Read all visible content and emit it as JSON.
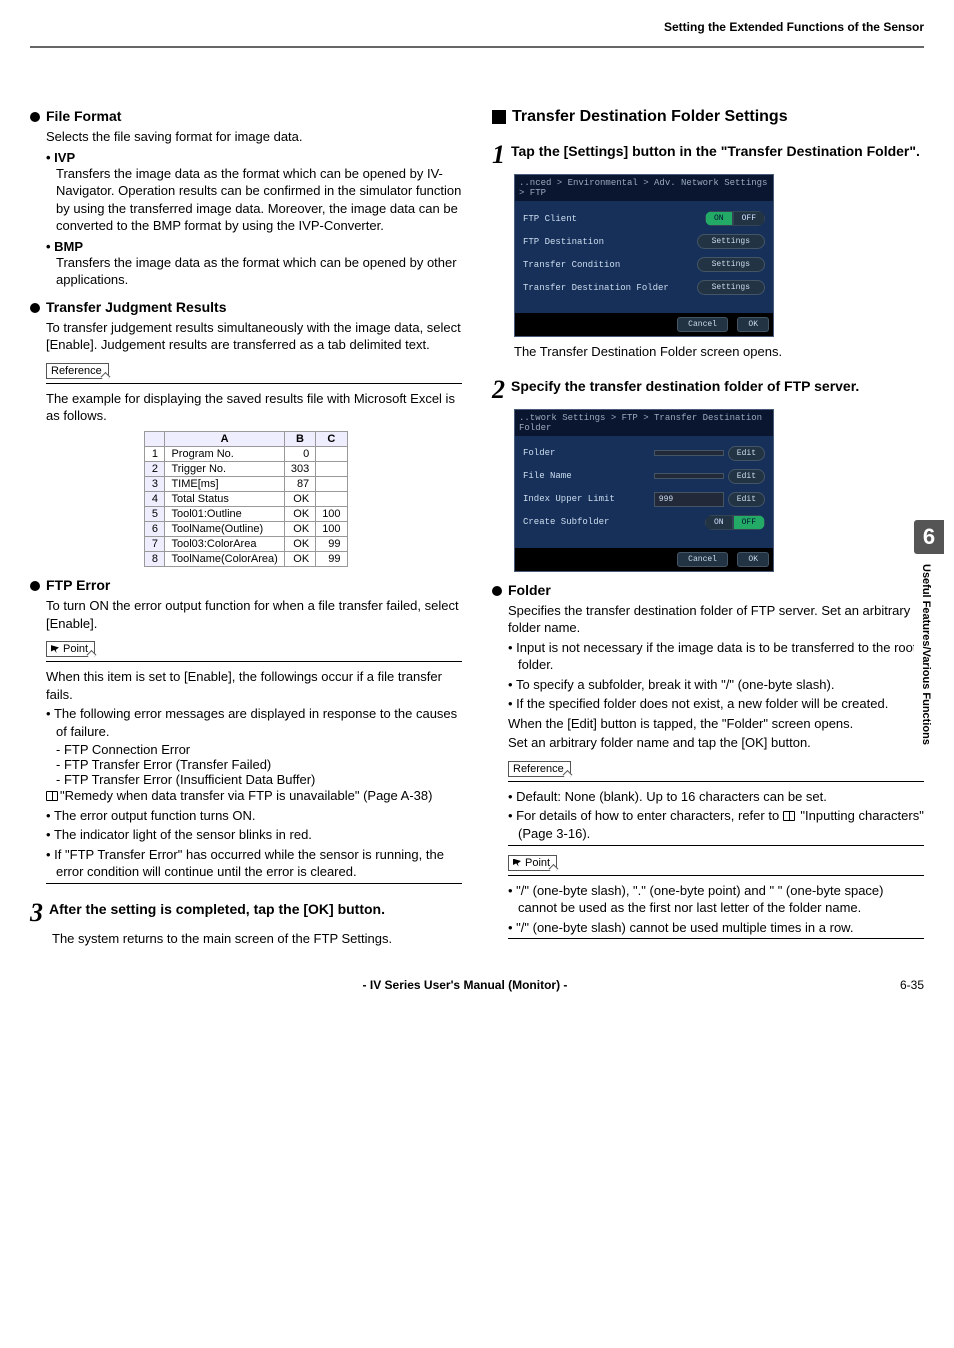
{
  "header": {
    "title": "Setting the Extended Functions of the Sensor"
  },
  "left": {
    "fileFormat": {
      "heading": "File Format",
      "intro": "Selects the file saving format for image data.",
      "ivp": {
        "label": "• IVP",
        "body": "Transfers the image data as the format which can be opened by IV-Navigator. Operation results can be confirmed in the simulator function by using the  transferred image data. Moreover, the image data can be converted to the BMP format by using the IVP-Converter."
      },
      "bmp": {
        "label": "• BMP",
        "body": "Transfers the image data as the format which can be opened by other applications."
      }
    },
    "tjr": {
      "heading": "Transfer Judgment Results",
      "body": "To transfer judgement results simultaneously with the image data, select [Enable]. Judgement results are transferred as a tab delimited text.",
      "refLabel": "Reference",
      "refBody": "The example for displaying the saved results file with Microsoft Excel is as follows."
    },
    "excel": {
      "headers": [
        "",
        "A",
        "B",
        "C"
      ],
      "rows": [
        [
          "1",
          "Program No.",
          "0",
          ""
        ],
        [
          "2",
          "Trigger No.",
          "303",
          ""
        ],
        [
          "3",
          "TIME[ms]",
          "87",
          ""
        ],
        [
          "4",
          "Total Status",
          "OK",
          ""
        ],
        [
          "5",
          "Tool01:Outline",
          "OK",
          "100"
        ],
        [
          "6",
          "ToolName(Outline)",
          "OK",
          "100"
        ],
        [
          "7",
          "Tool03:ColorArea",
          "OK",
          "99"
        ],
        [
          "8",
          "ToolName(ColorArea)",
          "OK",
          "99"
        ]
      ]
    },
    "ftpError": {
      "heading": "FTP Error",
      "body": "To turn ON the error output function for when a file transfer failed, select [Enable].",
      "pointLabel": "Point",
      "pointIntro": "When this item is set to [Enable], the followings occur if a file transfer fails.",
      "bullet1": "The following error messages are displayed in response to the causes of failure.",
      "dash1": "- FTP Connection Error",
      "dash2": "- FTP Transfer Error (Transfer Failed)",
      "dash3": "- FTP Transfer Error (Insufficient Data Buffer)",
      "remedy": "\"Remedy when data transfer via FTP is unavailable\" (Page A-38)",
      "bullet2": "The error output function turns ON.",
      "bullet3": "The indicator light of the sensor blinks in red.",
      "bullet4": "If \"FTP Transfer Error\" has occurred while the sensor is running, the error condition will continue until the error is cleared."
    },
    "step3": {
      "num": "3",
      "title": "After the setting is completed, tap the [OK] button.",
      "body": "The system returns to the main screen of the FTP Settings."
    }
  },
  "right": {
    "header": "Transfer Destination Folder Settings",
    "step1": {
      "num": "1",
      "title": "Tap the [Settings] button in the \"Transfer Destination Folder\".",
      "screenshot": {
        "crumb": "..nced > Environmental > Adv. Network Settings > FTP",
        "rows": [
          {
            "label": "FTP Client",
            "type": "toggle",
            "on": "ON",
            "off": "OFF"
          },
          {
            "label": "FTP Destination",
            "type": "btn",
            "btn": "Settings"
          },
          {
            "label": "Transfer Condition",
            "type": "btn",
            "btn": "Settings"
          },
          {
            "label": "Transfer Destination Folder",
            "type": "btn",
            "btn": "Settings"
          }
        ],
        "footer": {
          "cancel": "Cancel",
          "ok": "OK"
        }
      },
      "after": "The Transfer Destination Folder screen opens."
    },
    "step2": {
      "num": "2",
      "title": "Specify the transfer destination folder of FTP server.",
      "screenshot": {
        "crumb": "..twork Settings > FTP > Transfer Destination Folder",
        "rows": [
          {
            "label": "Folder",
            "type": "edit",
            "val": "",
            "btn": "Edit"
          },
          {
            "label": "File Name",
            "type": "edit",
            "val": "",
            "btn": "Edit"
          },
          {
            "label": "Index Upper Limit",
            "type": "edit",
            "val": "999",
            "btn": "Edit"
          },
          {
            "label": "Create Subfolder",
            "type": "toggle",
            "on": "ON",
            "off": "OFF",
            "offActive": true
          }
        ],
        "footer": {
          "cancel": "Cancel",
          "ok": "OK"
        }
      }
    },
    "folder": {
      "heading": "Folder",
      "body1": "Specifies the transfer destination folder of FTP server. Set an arbitrary folder name.",
      "b1": "Input is not necessary if the image data is to be transferred to the root folder.",
      "b2": "To specify a subfolder, break it with \"/\" (one-byte slash).",
      "b3": "If the specified folder does not exist, a new folder will be created.",
      "body2": "When the [Edit] button is tapped, the \"Folder\" screen opens.",
      "body3": "Set an arbitrary folder name and tap the [OK] button.",
      "refLabel": "Reference",
      "ref1": "Default: None (blank). Up to 16 characters can be set.",
      "ref2a": "For details of how to enter characters, refer to ",
      "ref2b": " \"Inputting characters\" (Page 3-16).",
      "pointLabel": "Point",
      "p1": "\"/\" (one-byte slash), \".\" (one-byte point) and \" \" (one-byte space) cannot be used as the first nor last letter of the folder name.",
      "p2": "\"/\" (one-byte slash) cannot be used multiple times in a row."
    }
  },
  "sidebar": {
    "chapter": "6",
    "text": "Useful Features/Various Functions"
  },
  "footer": {
    "center": "- IV Series User's Manual (Monitor) -",
    "page": "6-35"
  }
}
